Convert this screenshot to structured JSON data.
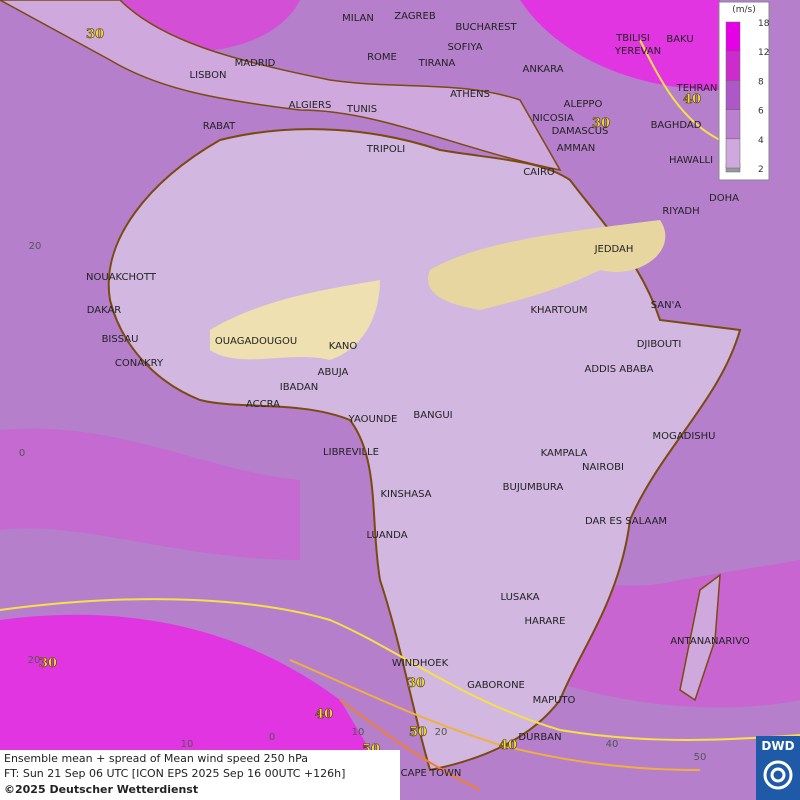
{
  "legend": {
    "unit": "(m/s)",
    "levels": [
      2,
      4,
      6,
      8,
      12,
      18
    ]
  },
  "cities": [
    "MILAN",
    "ZAGREB",
    "BUCHAREST",
    "TBILISI",
    "BAKU",
    "SOFIYA",
    "ROME",
    "TIRANA",
    "ANKARA",
    "YEREVAN",
    "LISBON",
    "MADRID",
    "TEHRAN",
    "ATHENS",
    "ALGIERS",
    "TUNIS",
    "ALEPPO",
    "NICOSIA",
    "BAGHDAD",
    "RABAT",
    "DAMASCUS",
    "TRIPOLI",
    "AMMAN",
    "HAWALLI",
    "CAIRO",
    "DOHA",
    "RIYADH",
    "JEDDAH",
    "NOUAKCHOTT",
    "SAN'A",
    "DAKAR",
    "KHARTOUM",
    "BISSAU",
    "OUAGADOUGOU",
    "KANO",
    "DJIBOUTI",
    "CONAKRY",
    "ABUJA",
    "ADDIS ABABA",
    "IBADAN",
    "ACCRA",
    "YAOUNDE",
    "BANGUI",
    "MOGADISHU",
    "LIBREVILLE",
    "KAMPALA",
    "NAIROBI",
    "BUJUMBURA",
    "KINSHASA",
    "DAR ES SALAAM",
    "LUANDA",
    "LUSAKA",
    "HARARE",
    "ANTANANARIVO",
    "WINDHOEK",
    "GABORONE",
    "MAPUTO",
    "DURBAN",
    "CAPE TOWN"
  ],
  "contour_labels": [
    "30",
    "40",
    "30",
    "30",
    "40",
    "30",
    "50",
    "40",
    "50"
  ],
  "grid_labels": [
    "20",
    "0",
    "20",
    "10",
    "0",
    "10",
    "20",
    "40",
    "50"
  ],
  "footer": {
    "line1": "Ensemble mean + spread of Mean wind speed 250 hPa",
    "line2": "FT: Sun 21 Sep 06 UTC [ICON EPS 2025 Sep 16 00UTC +126h]",
    "copyright": "©2025 Deutscher Wetterdienst"
  },
  "logo": "DWD"
}
